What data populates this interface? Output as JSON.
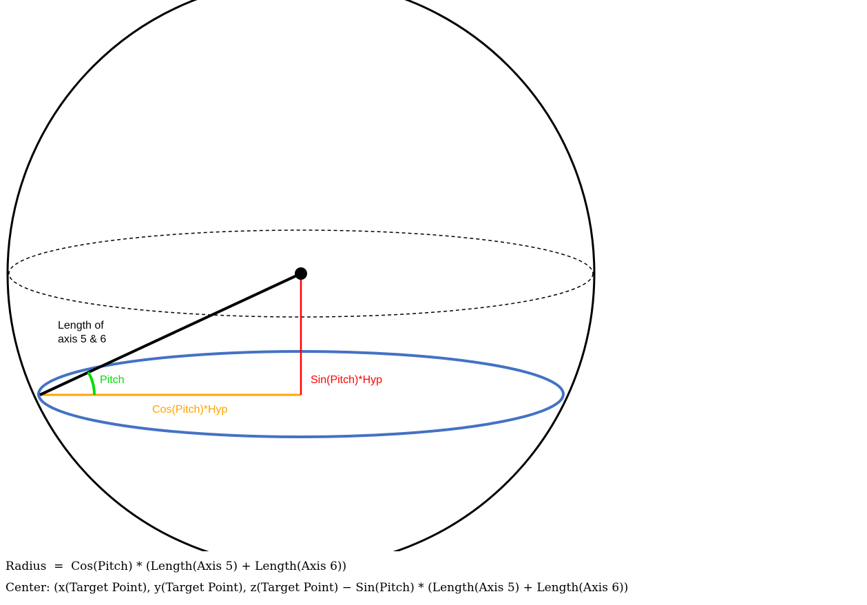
{
  "labels": {
    "hypotenuse_line1": "Length of",
    "hypotenuse_line2": "axis 5 & 6",
    "angle": "Pitch",
    "vertical": "Sin(Pitch)*Hyp",
    "horizontal": "Cos(Pitch)*Hyp"
  },
  "formulas": {
    "radius": "Radius  =  Cos(Pitch) * (Length(Axis 5) + Length(Axis 6))",
    "center": "Center: (x(Target Point), y(Target Point), z(Target Point) − Sin(Pitch) * (Length(Axis 5) + Length(Axis 6))"
  },
  "colors": {
    "sphere": "#000000",
    "blue_circle": "#4472C4",
    "vertical_line": "#FF0000",
    "horizontal_line": "#FFA500",
    "angle_arc": "#00DD00"
  }
}
